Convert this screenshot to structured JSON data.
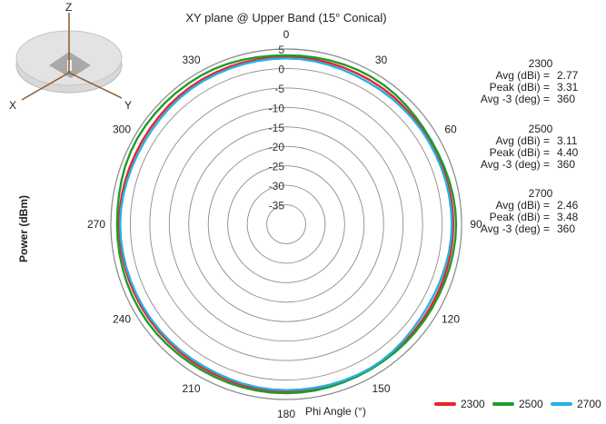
{
  "chart_data": {
    "type": "polar-line",
    "title": "XY plane @ Upper Band (15° Conical)",
    "radial_axis": {
      "label": "Power (dBm)",
      "range": [
        -40,
        5
      ],
      "ticks": [
        5,
        0,
        -5,
        -10,
        -15,
        -20,
        -25,
        -30,
        -35
      ]
    },
    "angular_axis": {
      "label": "Phi Angle (°)",
      "ticks": [
        0,
        30,
        60,
        90,
        120,
        150,
        180,
        210,
        240,
        270,
        300,
        330
      ]
    },
    "theta": [
      0,
      30,
      60,
      90,
      120,
      150,
      180,
      210,
      240,
      270,
      300,
      330
    ],
    "series": [
      {
        "name": "2300",
        "color": "#e8242b",
        "values": [
          3.0,
          2.8,
          2.6,
          2.9,
          2.7,
          3.1,
          2.9,
          2.7,
          2.8,
          2.9,
          2.7,
          3.0
        ]
      },
      {
        "name": "2500",
        "color": "#1e9b2d",
        "values": [
          3.4,
          3.7,
          3.0,
          3.6,
          3.2,
          3.1,
          3.4,
          3.3,
          3.6,
          3.4,
          4.1,
          4.0
        ]
      },
      {
        "name": "2700",
        "color": "#27b0e6",
        "values": [
          2.6,
          2.1,
          2.3,
          2.5,
          2.0,
          2.8,
          2.6,
          2.2,
          2.4,
          2.6,
          2.1,
          2.5
        ]
      }
    ]
  },
  "stats": [
    {
      "band": "2300",
      "rows": [
        {
          "label": "Avg (dBi) =",
          "value": "2.77"
        },
        {
          "label": "Peak (dBi) =",
          "value": "3.31"
        },
        {
          "label": "Avg -3 (deg) =",
          "value": "360"
        }
      ]
    },
    {
      "band": "2500",
      "rows": [
        {
          "label": "Avg (dBi) =",
          "value": "3.11"
        },
        {
          "label": "Peak (dBi) =",
          "value": "4.40"
        },
        {
          "label": "Avg -3 (deg) =",
          "value": "360"
        }
      ]
    },
    {
      "band": "2700",
      "rows": [
        {
          "label": "Avg (dBi) =",
          "value": "2.46"
        },
        {
          "label": "Peak (dBi) =",
          "value": "3.48"
        },
        {
          "label": "Avg -3 (deg) =",
          "value": "360"
        }
      ]
    }
  ],
  "axes_icon": {
    "x": "X",
    "y": "Y",
    "z": "Z"
  },
  "legend": [
    "2300",
    "2500",
    "2700"
  ]
}
